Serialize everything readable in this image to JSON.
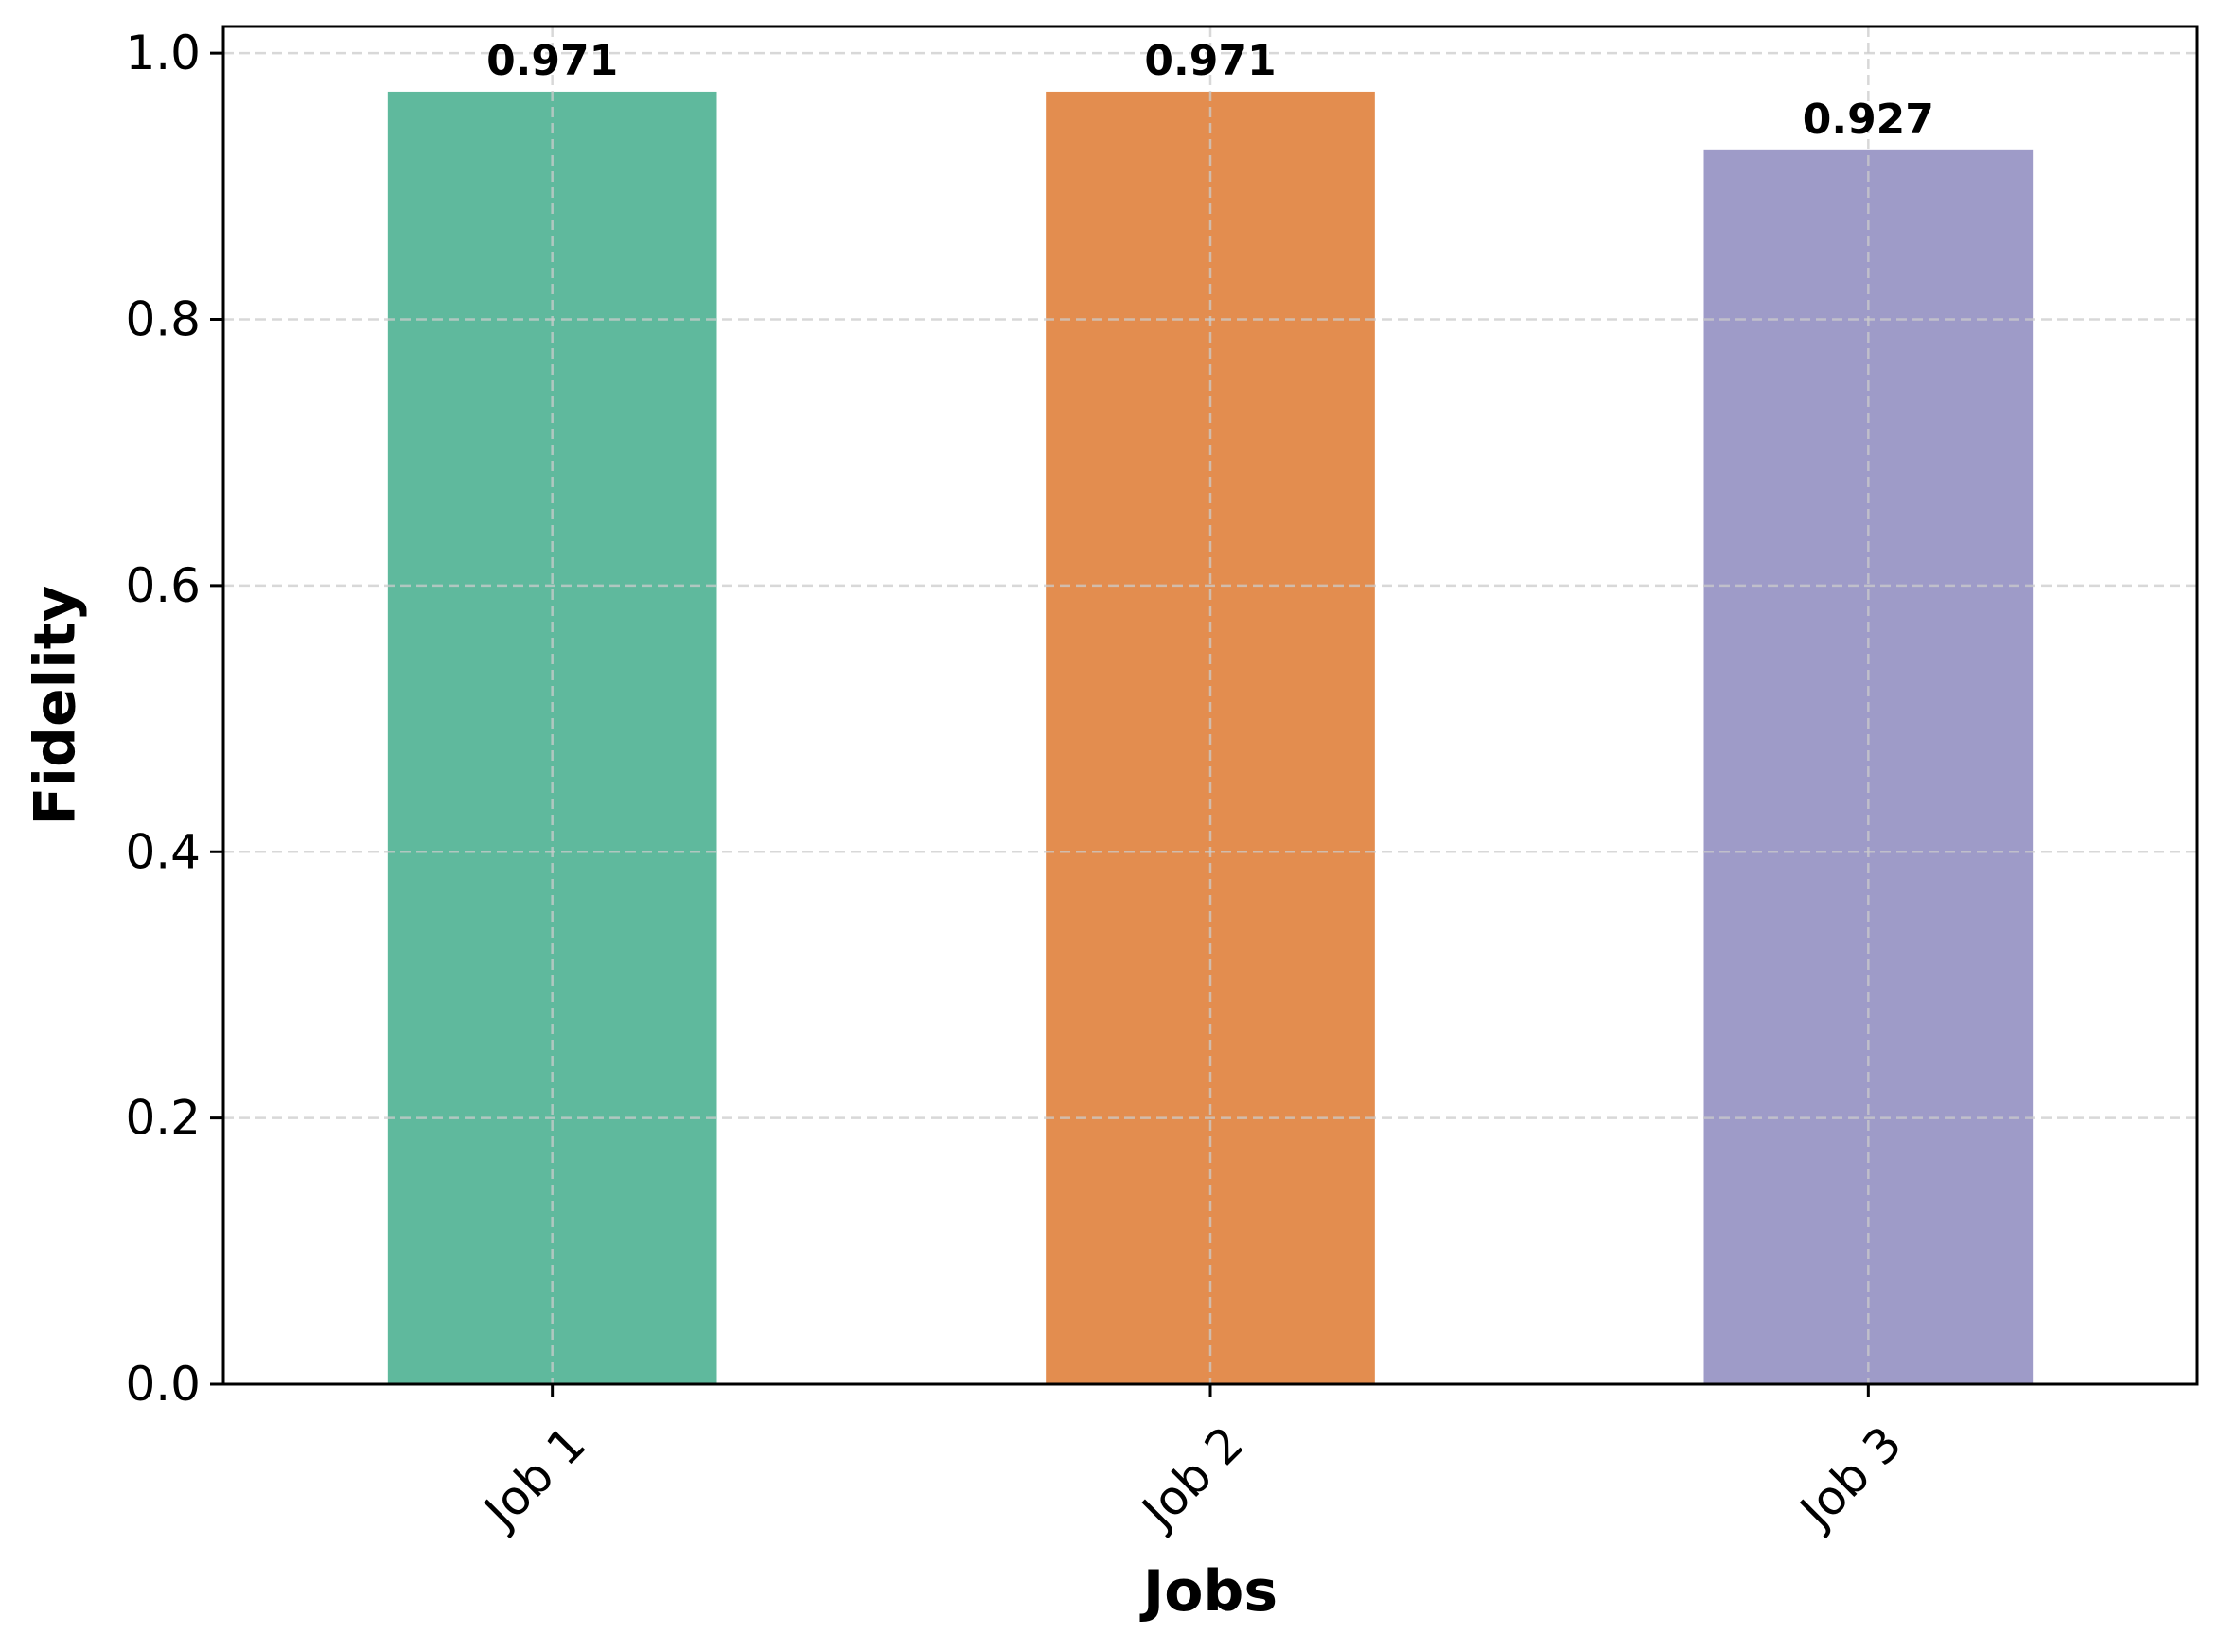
{
  "chart_data": {
    "type": "bar",
    "categories": [
      "Job 1",
      "Job 2",
      "Job 3"
    ],
    "values": [
      0.971,
      0.971,
      0.927
    ],
    "value_labels": [
      "0.971",
      "0.971",
      "0.927"
    ],
    "bar_colors": [
      "#5fb99d",
      "#e38d4f",
      "#9e9bc8"
    ],
    "title": "",
    "xlabel": "Jobs",
    "ylabel": "Fidelity",
    "ylim": [
      0,
      1.02
    ],
    "yticks": [
      0.0,
      0.2,
      0.4,
      0.6,
      0.8,
      1.0
    ],
    "ytick_labels": [
      "0.0",
      "0.2",
      "0.4",
      "0.6",
      "0.8",
      "1.0"
    ],
    "grid": true,
    "legend": "none",
    "xtick_rotation": "45 degrees"
  }
}
